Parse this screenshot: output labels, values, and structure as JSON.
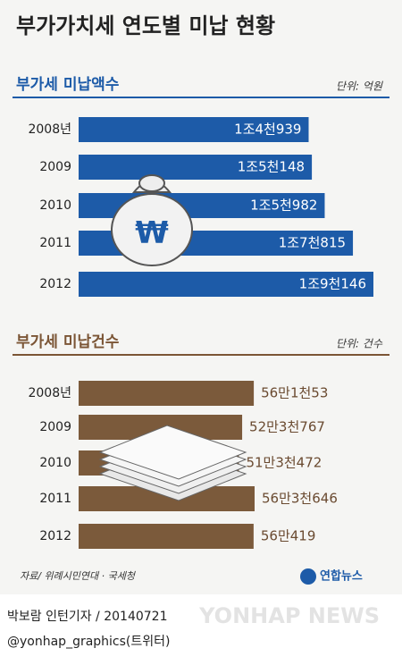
{
  "title": "부가가치세 연도별 미납 현황",
  "chart_data": [
    {
      "type": "bar",
      "orientation": "horizontal",
      "title": "부가세 미납액수",
      "unit": "단위: 억원",
      "categories": [
        "2008년",
        "2009",
        "2010",
        "2011",
        "2012"
      ],
      "values": [
        14939,
        15148,
        15982,
        17815,
        19146
      ],
      "value_labels": [
        "1조4천939",
        "1조5천148",
        "1조5천982",
        "1조7천815",
        "1조9천146"
      ],
      "color": "#1d5ba8",
      "title_color": "#1d5ba8",
      "label_color": "#ffffff"
    },
    {
      "type": "bar",
      "orientation": "horizontal",
      "title": "부가세 미납건수",
      "unit": "단위: 건수",
      "categories": [
        "2008년",
        "2009",
        "2010",
        "2011",
        "2012"
      ],
      "values": [
        561053,
        523767,
        513472,
        563646,
        560419
      ],
      "value_labels": [
        "56만1천53",
        "52만3천767",
        "51만3천472",
        "56만3천646",
        "56만419"
      ],
      "color": "#7b5a3b",
      "title_color": "#7b5535",
      "label_color": "#6a4a30"
    }
  ],
  "source": "자료/ 위례시민연대 · 국세청",
  "logo": "연합뉴스",
  "credit": "박보람 인턴기자 / 20140721",
  "twitter": "@yonhap_graphics(트위터)",
  "watermark": "YONHAP NEWS"
}
